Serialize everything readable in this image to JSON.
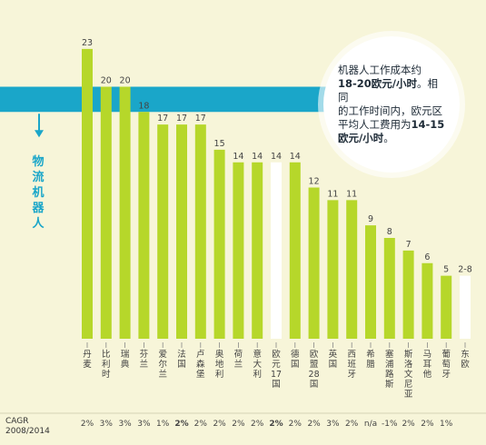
{
  "chart_data": {
    "type": "bar",
    "categories": [
      "丹麦",
      "比利时",
      "瑞典",
      "芬兰",
      "爱尔兰",
      "法国",
      "卢森堡",
      "奥地利",
      "荷兰",
      "意大利",
      "欧元17国",
      "德国",
      "欧盟28国",
      "英国",
      "西班牙",
      "希腊",
      "塞浦路斯",
      "斯洛文尼亚",
      "马耳他",
      "葡萄牙",
      "东欧"
    ],
    "values": [
      23,
      20,
      20,
      18,
      17,
      17,
      17,
      15,
      14,
      14,
      14,
      14,
      12,
      11,
      11,
      9,
      8,
      7,
      6,
      5,
      5
    ],
    "value_labels": [
      "23",
      "20",
      "20",
      "18",
      "17",
      "17",
      "17",
      "15",
      "14",
      "14",
      "14",
      "14",
      "12",
      "11",
      "11",
      "9",
      "8",
      "7",
      "6",
      "5",
      "2-8"
    ],
    "highlight": [
      "欧元17国",
      "东欧"
    ],
    "ylim": [
      0,
      24
    ],
    "band_range": [
      18,
      20
    ],
    "band_label": "物流机器人",
    "callout": {
      "line1": "机器人工作成本约",
      "line2": "18-20欧元/小时",
      "line2_suffix": "。相同",
      "line3": "的工作时间内，欧元区",
      "line4a": "平均人工费用为",
      "line4b": "14-15",
      "line5": "欧元/小时",
      "line5_suffix": "。"
    },
    "cagr_title_1": "CAGR",
    "cagr_title_2": "2008/2014",
    "cagr": [
      "2%",
      "3%",
      "3%",
      "3%",
      "1%",
      "2%",
      "2%",
      "2%",
      "2%",
      "2%",
      "2%",
      "2%",
      "2%",
      "3%",
      "2%",
      "n/a",
      "-1%",
      "2%",
      "2%",
      "1%",
      ""
    ],
    "cagr_bold": [
      "法国",
      "欧元17国"
    ]
  },
  "colors": {
    "bar": "#b6d72a",
    "bar_highlight": "#ffffff",
    "band": "#1aa6c9",
    "background": "#f7f5d9",
    "text": "#444444",
    "callout_text": "#1d2a36"
  }
}
